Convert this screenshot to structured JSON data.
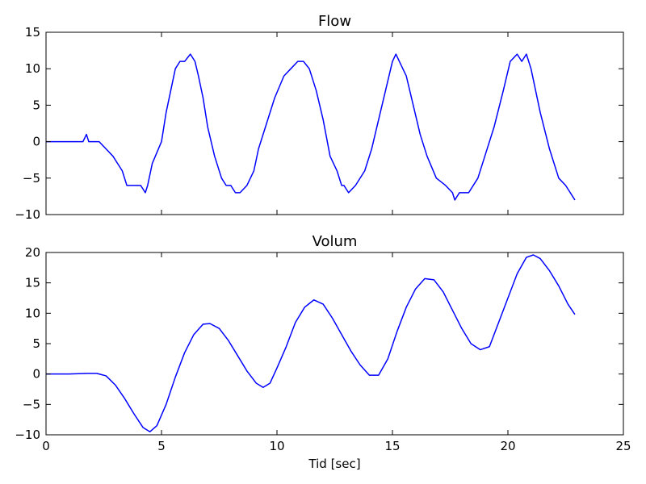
{
  "chart_data": [
    {
      "type": "line",
      "title": "Flow",
      "xlabel": "",
      "ylabel": "",
      "xlim": [
        0,
        25
      ],
      "ylim": [
        -10,
        15
      ],
      "xticks": [
        0,
        5,
        10,
        15,
        20,
        25
      ],
      "yticks": [
        -10,
        -5,
        0,
        5,
        10,
        15
      ],
      "xtick_labels": [],
      "ytick_labels": [
        "−10",
        "−5",
        "0",
        "5",
        "10",
        "15"
      ],
      "color": "#0000ff",
      "grid": false,
      "series": [
        {
          "x": [
            0,
            1.6,
            1.75,
            1.85,
            2.3,
            2.6,
            2.9,
            3.1,
            3.3,
            3.5,
            3.8,
            4.1,
            4.3,
            4.4,
            4.6,
            5.0,
            5.2,
            5.4,
            5.6,
            5.8,
            6.0,
            6.25,
            6.45,
            6.6,
            6.8,
            7.0,
            7.3,
            7.6,
            7.8,
            8.0,
            8.2,
            8.4,
            8.7,
            9.0,
            9.2,
            9.5,
            9.9,
            10.3,
            10.6,
            10.9,
            11.15,
            11.4,
            11.7,
            12.0,
            12.3,
            12.6,
            12.8,
            12.9,
            13.1,
            13.4,
            13.8,
            14.1,
            14.4,
            14.7,
            15.0,
            15.15,
            15.3,
            15.6,
            15.9,
            16.2,
            16.5,
            16.9,
            17.3,
            17.6,
            17.7,
            17.9,
            18.3,
            18.7,
            19.0,
            19.4,
            19.8,
            20.1,
            20.4,
            20.6,
            20.8,
            21.0,
            21.2,
            21.4,
            21.8,
            22.2,
            22.5,
            22.7,
            22.9
          ],
          "y": [
            0,
            0,
            1,
            0,
            0,
            -1,
            -2,
            -3,
            -4,
            -6,
            -6,
            -6,
            -7,
            -6,
            -3,
            0,
            4,
            7,
            10,
            11,
            11,
            12,
            11,
            9,
            6,
            2,
            -2,
            -5,
            -6,
            -6,
            -7,
            -7,
            -6,
            -4,
            -1,
            2,
            6,
            9,
            10,
            11,
            11,
            10,
            7,
            3,
            -2,
            -4,
            -6,
            -6,
            -7,
            -6,
            -4,
            -1,
            3,
            7,
            11,
            12,
            11,
            9,
            5,
            1,
            -2,
            -5,
            -6,
            -7,
            -8,
            -7,
            -7,
            -5,
            -2,
            2,
            7,
            11,
            12,
            11,
            12,
            10,
            7,
            4,
            -1,
            -5,
            -6,
            -7,
            -8
          ]
        }
      ]
    },
    {
      "type": "line",
      "title": "Volum",
      "xlabel": "Tid [sec]",
      "ylabel": "",
      "xlim": [
        0,
        25
      ],
      "ylim": [
        -10,
        20
      ],
      "xticks": [
        0,
        5,
        10,
        15,
        20,
        25
      ],
      "yticks": [
        -10,
        -5,
        0,
        5,
        10,
        15,
        20
      ],
      "xtick_labels": [
        "0",
        "5",
        "10",
        "15",
        "20",
        "25"
      ],
      "ytick_labels": [
        "−10",
        "−5",
        "0",
        "5",
        "10",
        "15",
        "20"
      ],
      "color": "#0000ff",
      "grid": false,
      "series": [
        {
          "x": [
            0,
            1.0,
            1.8,
            2.2,
            2.6,
            3.0,
            3.4,
            3.8,
            4.2,
            4.5,
            4.8,
            5.2,
            5.6,
            6.0,
            6.4,
            6.8,
            7.1,
            7.5,
            7.9,
            8.3,
            8.7,
            9.1,
            9.4,
            9.7,
            10.0,
            10.4,
            10.8,
            11.2,
            11.6,
            12.0,
            12.4,
            12.8,
            13.2,
            13.6,
            14.0,
            14.4,
            14.8,
            15.2,
            15.6,
            16.0,
            16.4,
            16.8,
            17.2,
            17.6,
            18.0,
            18.4,
            18.8,
            19.2,
            19.6,
            20.0,
            20.4,
            20.8,
            21.1,
            21.4,
            21.8,
            22.2,
            22.6,
            22.9
          ],
          "y": [
            0,
            0,
            0.1,
            0.1,
            -0.3,
            -1.8,
            -4,
            -6.5,
            -8.8,
            -9.5,
            -8.5,
            -5,
            -0.5,
            3.5,
            6.5,
            8.2,
            8.3,
            7.5,
            5.5,
            3,
            0.5,
            -1.5,
            -2.2,
            -1.5,
            1,
            4.5,
            8.5,
            11,
            12.2,
            11.5,
            9.2,
            6.5,
            3.8,
            1.5,
            -0.2,
            -0.2,
            2.5,
            7,
            11,
            14,
            15.7,
            15.5,
            13.5,
            10.5,
            7.5,
            5,
            4,
            4.5,
            8.5,
            12.5,
            16.5,
            19.2,
            19.6,
            19,
            17,
            14.5,
            11.5,
            9.8
          ]
        }
      ]
    }
  ]
}
